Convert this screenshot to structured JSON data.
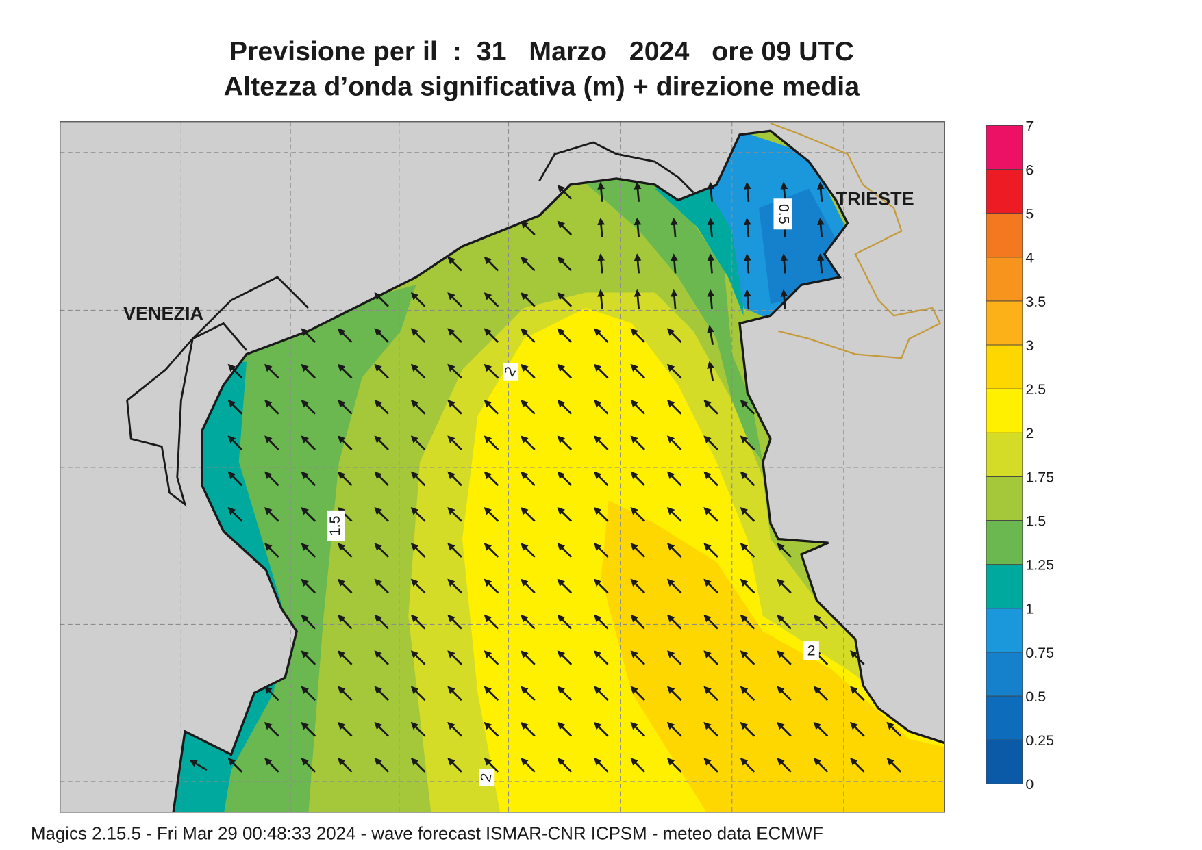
{
  "header": {
    "title": "Previsione per il  :  31   Marzo   2024   ore 09 UTC",
    "subtitle": "Altezza d’onda significativa (m) + direzione media"
  },
  "map": {
    "places": [
      "VENEZIA",
      "TRIESTE"
    ],
    "contour_labels": [
      "0.5",
      "1.5",
      "2",
      "2",
      "2"
    ]
  },
  "colorbar": {
    "levels": [
      "0",
      "0.25",
      "0.5",
      "0.75",
      "1",
      "1.25",
      "1.5",
      "1.75",
      "2",
      "2.5",
      "3",
      "3.5",
      "4",
      "5",
      "6",
      "7"
    ],
    "colors": [
      "#0b5aa8",
      "#0e6cbc",
      "#1581cc",
      "#1b97dc",
      "#00a99d",
      "#6ab84f",
      "#a4c83a",
      "#d4dc28",
      "#fff000",
      "#ffd700",
      "#fbb117",
      "#f7941d",
      "#f47820",
      "#ed1c24",
      "#ed1165"
    ]
  },
  "footer": "Magics 2.15.5 - Fri Mar 29 00:48:33 2024 - wave forecast  ISMAR-CNR  ICPSM - meteo data    ECMWF"
}
